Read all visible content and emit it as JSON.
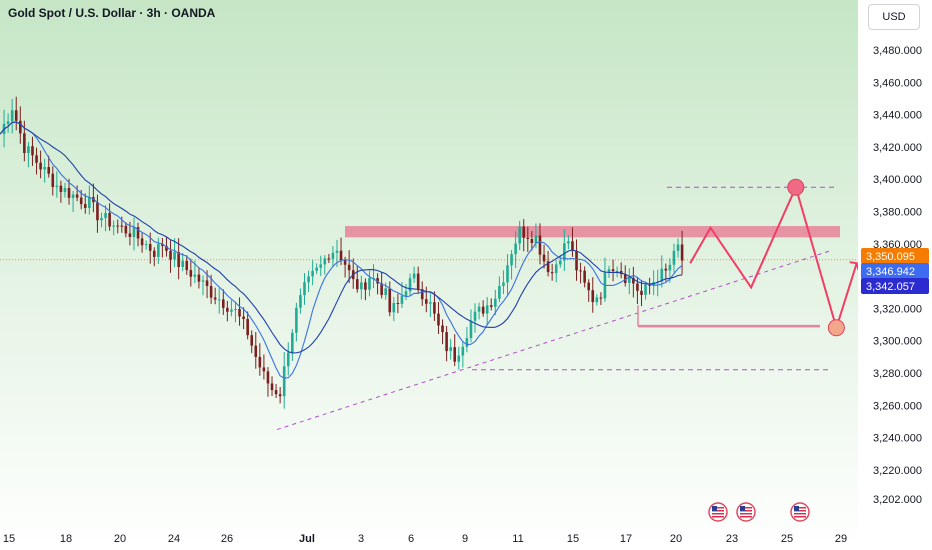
{
  "header": {
    "title": "Gold Spot / U.S. Dollar · 3h · OANDA",
    "currency": "USD"
  },
  "colors": {
    "up": "#22ab94",
    "down": "#7a1f1f",
    "ma_dark": "#1e3fa8",
    "ma_light": "#3a72e0",
    "trend": "#b04fc8",
    "resistance": "#e8829a",
    "projection": "#f23d64",
    "price_tag": "#f57c00",
    "tag_blue": "#3d6cf0",
    "tag_navy": "#2b2bcf"
  },
  "chart_data": {
    "type": "candlestick",
    "title": "Gold Spot / U.S. Dollar · 3h · OANDA",
    "y_axis": {
      "ticks": [
        "3,480.000",
        "3,460.000",
        "3,440.000",
        "3,420.000",
        "3,400.000",
        "3,380.000",
        "3,360.000",
        "3,340.000",
        "3,320.000",
        "3,300.000",
        "3,280.000",
        "3,260.000",
        "3,240.000",
        "3,220.000",
        "3,202.000"
      ],
      "range": [
        3195,
        3495
      ]
    },
    "x_axis": {
      "ticks": [
        "15",
        "18",
        "20",
        "24",
        "26",
        "Jul",
        "3",
        "6",
        "9",
        "11",
        "15",
        "17",
        "20",
        "23",
        "25",
        "29"
      ]
    },
    "price_path": [
      [
        0,
        3428
      ],
      [
        3,
        3445
      ],
      [
        6,
        3420
      ],
      [
        10,
        3408
      ],
      [
        14,
        3396
      ],
      [
        18,
        3390
      ],
      [
        22,
        3385
      ],
      [
        24,
        3378
      ],
      [
        28,
        3372
      ],
      [
        33,
        3366
      ],
      [
        38,
        3355
      ],
      [
        40,
        3360
      ],
      [
        44,
        3348
      ],
      [
        48,
        3340
      ],
      [
        52,
        3330
      ],
      [
        56,
        3322
      ],
      [
        58,
        3318
      ],
      [
        61,
        3305
      ],
      [
        63,
        3290
      ],
      [
        65,
        3278
      ],
      [
        67,
        3270
      ],
      [
        69,
        3268
      ],
      [
        71,
        3296
      ],
      [
        73,
        3318
      ],
      [
        75,
        3332
      ],
      [
        77,
        3340
      ],
      [
        79,
        3346
      ],
      [
        81,
        3355
      ],
      [
        83,
        3357
      ],
      [
        85,
        3348
      ],
      [
        87,
        3336
      ],
      [
        89,
        3332
      ],
      [
        91,
        3340
      ],
      [
        93,
        3336
      ],
      [
        95,
        3328
      ],
      [
        96,
        3318
      ],
      [
        98,
        3322
      ],
      [
        100,
        3334
      ],
      [
        102,
        3338
      ],
      [
        104,
        3330
      ],
      [
        106,
        3322
      ],
      [
        108,
        3308
      ],
      [
        110,
        3296
      ],
      [
        112,
        3290
      ],
      [
        114,
        3300
      ],
      [
        116,
        3312
      ],
      [
        118,
        3318
      ],
      [
        120,
        3322
      ],
      [
        122,
        3328
      ],
      [
        124,
        3340
      ],
      [
        126,
        3356
      ],
      [
        128,
        3368
      ],
      [
        130,
        3366
      ],
      [
        132,
        3364
      ],
      [
        134,
        3350
      ],
      [
        136,
        3342
      ],
      [
        138,
        3354
      ],
      [
        140,
        3362
      ],
      [
        142,
        3345
      ],
      [
        144,
        3334
      ],
      [
        146,
        3326
      ],
      [
        148,
        3330
      ],
      [
        150,
        3348
      ],
      [
        152,
        3346
      ],
      [
        154,
        3340
      ],
      [
        156,
        3336
      ],
      [
        158,
        3328
      ],
      [
        160,
        3334
      ],
      [
        162,
        3340
      ],
      [
        164,
        3342
      ],
      [
        166,
        3352
      ],
      [
        167,
        3358
      ],
      [
        168,
        3350
      ]
    ],
    "series": [
      {
        "name": "",
        "type": "moving-average-fast"
      },
      {
        "name": "",
        "type": "moving-average-slow"
      }
    ],
    "annotations": {
      "resistance_zone": [
        3364,
        3371
      ],
      "support_line": 3309,
      "top_dashed_level": 3395,
      "bottom_dashed_level": 3282,
      "projection_path": [
        [
          170,
          3348
        ],
        [
          175,
          3370
        ],
        [
          185,
          3333
        ],
        [
          196,
          3395
        ],
        [
          206,
          3308
        ],
        [
          211,
          3348
        ]
      ]
    },
    "price_labels": [
      {
        "text": "3,350.095",
        "value": 3350.095,
        "role": "last-price"
      },
      {
        "text": "3,346.942",
        "value": 3346.942,
        "role": "ma-fast"
      },
      {
        "text": "3,342.057",
        "value": 3342.057,
        "role": "ma-slow"
      }
    ],
    "event_markers": 3,
    "grid": false,
    "legend": "none"
  }
}
